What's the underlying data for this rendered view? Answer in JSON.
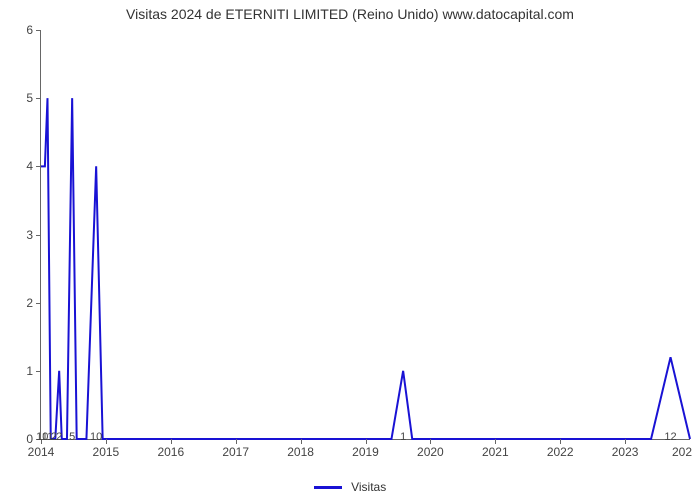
{
  "chart": {
    "type": "line",
    "title": "Visitas 2024 de ETERNITI LIMITED (Reino Unido) www.datocapital.com",
    "title_fontsize": 14,
    "title_color": "#333333",
    "background_color": "#ffffff",
    "axis_color": "#666666",
    "label_color": "#444444",
    "label_fontsize": 12,
    "line_color": "#1912d4",
    "line_width": 2,
    "x": {
      "min": 2014,
      "max": 2024,
      "ticks": [
        2014,
        2015,
        2016,
        2017,
        2018,
        2019,
        2020,
        2021,
        2022,
        2023
      ],
      "tick_labels": [
        "2014",
        "2015",
        "2016",
        "2017",
        "2018",
        "2019",
        "2020",
        "2021",
        "2022",
        "2023"
      ],
      "right_edge_label": "202"
    },
    "y": {
      "min": 0,
      "max": 6,
      "ticks": [
        0,
        1,
        2,
        3,
        4,
        5,
        6
      ]
    },
    "series": [
      {
        "name": "Visitas",
        "color": "#1912d4",
        "points": [
          [
            2014.0,
            4.0
          ],
          [
            2014.06,
            4.0
          ],
          [
            2014.1,
            5.0
          ],
          [
            2014.15,
            0.0
          ],
          [
            2014.22,
            0.0
          ],
          [
            2014.28,
            1.0
          ],
          [
            2014.32,
            0.0
          ],
          [
            2014.4,
            0.0
          ],
          [
            2014.48,
            5.0
          ],
          [
            2014.55,
            0.0
          ],
          [
            2014.7,
            0.0
          ],
          [
            2014.85,
            4.0
          ],
          [
            2014.95,
            0.0
          ],
          [
            2019.4,
            0.0
          ],
          [
            2019.58,
            1.0
          ],
          [
            2019.72,
            0.0
          ],
          [
            2023.4,
            0.0
          ],
          [
            2023.7,
            1.2
          ],
          [
            2024.0,
            0.0
          ]
        ]
      }
    ],
    "peak_labels": [
      {
        "x": 2014.02,
        "text": "10"
      },
      {
        "x": 2014.1,
        "text": "11"
      },
      {
        "x": 2014.2,
        "text": "2"
      },
      {
        "x": 2014.28,
        "text": "2"
      },
      {
        "x": 2014.48,
        "text": "5"
      },
      {
        "x": 2014.85,
        "text": "10"
      },
      {
        "x": 2019.58,
        "text": "1"
      },
      {
        "x": 2023.7,
        "text": "12"
      }
    ],
    "legend": {
      "label": "Visitas",
      "swatch_color": "#1912d4",
      "swatch_width": 3
    }
  }
}
